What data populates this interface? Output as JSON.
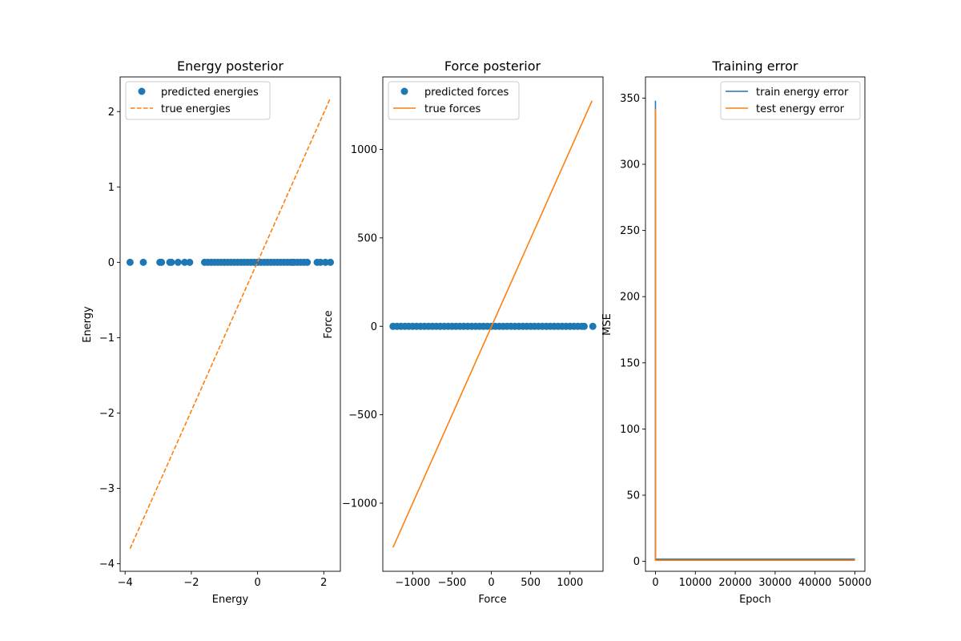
{
  "colors": {
    "blue": "#1f77b4",
    "orange": "#ff7f0e"
  },
  "chart_data": [
    {
      "type": "scatter",
      "title": "Energy posterior",
      "xlabel": "Energy",
      "ylabel": "Energy",
      "xlim": [
        -4.15,
        2.5
      ],
      "ylim": [
        -4.1,
        2.46
      ],
      "xticks": [
        -4,
        -2,
        0,
        2
      ],
      "yticks": [
        -4,
        -3,
        -2,
        -1,
        0,
        1,
        2
      ],
      "grid": false,
      "legend": "top-left",
      "series": [
        {
          "name": "predicted energies",
          "kind": "scatter",
          "color": "#1f77b4",
          "x": [
            -3.85,
            -3.45,
            -2.95,
            -2.9,
            -2.65,
            -2.6,
            -2.4,
            -2.2,
            -2.05,
            -1.6,
            -1.5,
            -1.4,
            -1.3,
            -1.2,
            -1.1,
            -1.0,
            -0.9,
            -0.8,
            -0.7,
            -0.6,
            -0.5,
            -0.4,
            -0.3,
            -0.2,
            -0.1,
            0.0,
            0.1,
            0.2,
            0.3,
            0.4,
            0.5,
            0.6,
            0.7,
            0.8,
            0.9,
            1.0,
            1.05,
            1.1,
            1.2,
            1.3,
            1.4,
            1.5,
            1.8,
            1.9,
            2.05,
            2.2
          ],
          "y": [
            0,
            0,
            0,
            0,
            0,
            0,
            0,
            0,
            0,
            0,
            0,
            0,
            0,
            0,
            0,
            0,
            0,
            0,
            0,
            0,
            0,
            0,
            0,
            0,
            0,
            0,
            0,
            0,
            0,
            0,
            0,
            0,
            0,
            0,
            0,
            0,
            0,
            0,
            0,
            0,
            0,
            0,
            0,
            0,
            0,
            0
          ]
        },
        {
          "name": "true energies",
          "kind": "dashed-line",
          "color": "#ff7f0e",
          "x": [
            -3.85,
            2.2
          ],
          "y": [
            -3.8,
            2.18
          ]
        }
      ]
    },
    {
      "type": "scatter",
      "title": "Force posterior",
      "xlabel": "Force",
      "ylabel": "Force",
      "xlim": [
        -1380,
        1420
      ],
      "ylim": [
        -1385,
        1410
      ],
      "xticks": [
        -1000,
        -500,
        0,
        500,
        1000
      ],
      "yticks": [
        -1000,
        -500,
        0,
        500,
        1000
      ],
      "grid": false,
      "legend": "top-left",
      "series": [
        {
          "name": "predicted forces",
          "kind": "scatter",
          "color": "#1f77b4",
          "x": [
            -1250,
            -1200,
            -1150,
            -1100,
            -1050,
            -1000,
            -950,
            -900,
            -850,
            -800,
            -750,
            -700,
            -650,
            -600,
            -550,
            -500,
            -450,
            -400,
            -350,
            -300,
            -250,
            -200,
            -150,
            -100,
            -50,
            0,
            50,
            100,
            150,
            200,
            250,
            300,
            350,
            400,
            450,
            500,
            550,
            600,
            650,
            700,
            750,
            800,
            850,
            900,
            950,
            1000,
            1050,
            1100,
            1150,
            1180,
            1290
          ],
          "y": [
            0,
            0,
            0,
            0,
            0,
            0,
            0,
            0,
            0,
            0,
            0,
            0,
            0,
            0,
            0,
            0,
            0,
            0,
            0,
            0,
            0,
            0,
            0,
            0,
            0,
            0,
            0,
            0,
            0,
            0,
            0,
            0,
            0,
            0,
            0,
            0,
            0,
            0,
            0,
            0,
            0,
            0,
            0,
            0,
            0,
            0,
            0,
            0,
            0,
            0,
            0
          ]
        },
        {
          "name": "true forces",
          "kind": "line",
          "color": "#ff7f0e",
          "x": [
            -1250,
            1280
          ],
          "y": [
            -1250,
            1275
          ]
        }
      ]
    },
    {
      "type": "line",
      "title": "Training error",
      "xlabel": "Epoch",
      "ylabel": "MSE",
      "xlim": [
        -2500,
        52500
      ],
      "ylim": [
        -7.5,
        366
      ],
      "xticks": [
        0,
        10000,
        20000,
        30000,
        40000,
        50000
      ],
      "yticks": [
        0,
        50,
        100,
        150,
        200,
        250,
        300,
        350
      ],
      "grid": false,
      "legend": "top-right",
      "series": [
        {
          "name": "train energy error",
          "kind": "line",
          "color": "#1f77b4",
          "x": [
            0,
            1,
            50000
          ],
          "y": [
            348,
            1.6,
            1.6
          ]
        },
        {
          "name": "test energy error",
          "kind": "line",
          "color": "#ff7f0e",
          "x": [
            0,
            1,
            50000
          ],
          "y": [
            342,
            0.8,
            0.8
          ]
        }
      ]
    }
  ]
}
